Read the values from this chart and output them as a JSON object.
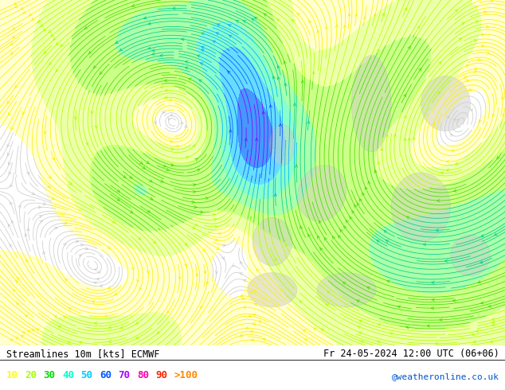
{
  "title_left": "Streamlines 10m [kts] ECMWF",
  "title_right": "Fr 24-05-2024 12:00 UTC (06+06)",
  "credit": "@weatheronline.co.uk",
  "legend_values": [
    "10",
    "20",
    "30",
    "40",
    "50",
    "60",
    "70",
    "80",
    "90",
    ">100"
  ],
  "legend_colors": [
    "#ffff00",
    "#aaff00",
    "#00dd00",
    "#00ffcc",
    "#00ccff",
    "#0055ff",
    "#aa00ff",
    "#ff00aa",
    "#ff2200",
    "#ff8800"
  ],
  "bg_color": "#ffffff",
  "figsize": [
    6.34,
    4.9
  ],
  "dpi": 100,
  "speed_bin_colors": [
    "#ffffff",
    "#ffffd0",
    "#eeffaa",
    "#ccff88",
    "#aaffaa",
    "#88ffcc",
    "#66ddff",
    "#4499ff",
    "#aa44ff",
    "#ff44bb",
    "#ff4400"
  ],
  "speed_bounds": [
    0,
    10,
    20,
    30,
    40,
    50,
    60,
    70,
    80,
    90,
    100,
    300
  ]
}
